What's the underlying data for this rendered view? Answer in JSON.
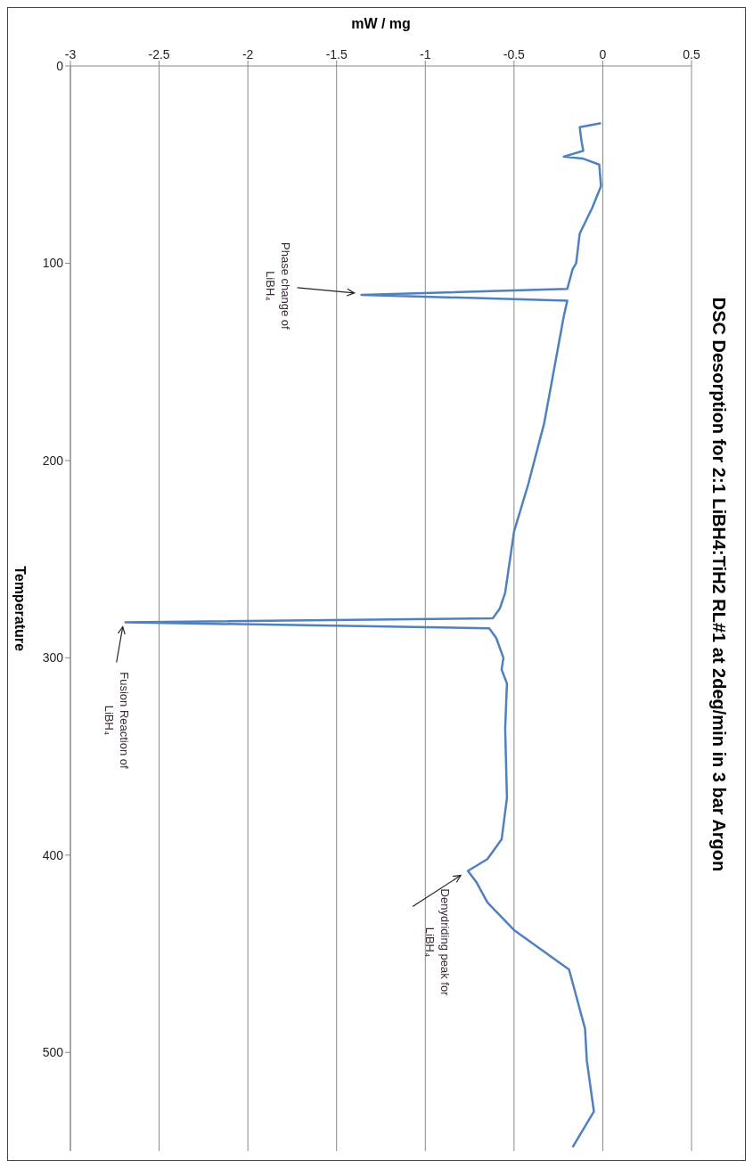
{
  "chart_data": {
    "type": "line",
    "title": "DSC Desorption for 2:1 LiBH4:TiH2 RL#1 at 2deg/min in 3 bar Argon",
    "xlabel": "mW / mg",
    "ylabel": "Temperature",
    "x": [
      -0.01,
      -0.13,
      -0.12,
      -0.11,
      -0.22,
      -0.11,
      -0.02,
      -0.01,
      -0.06,
      -0.13,
      -0.15,
      -0.17,
      -0.2,
      -1.36,
      -0.2,
      -0.22,
      -0.33,
      -0.42,
      -0.5,
      -0.55,
      -0.58,
      -0.62,
      -2.69,
      -0.64,
      -0.6,
      -0.56,
      -0.57,
      -0.54,
      -0.55,
      -0.54,
      -0.57,
      -0.65,
      -0.76,
      -0.71,
      -0.65,
      -0.5,
      -0.19,
      -0.1,
      -0.09,
      -0.05,
      -0.17
    ],
    "values": [
      29,
      31,
      38,
      43,
      46,
      47,
      50,
      61,
      72,
      85,
      100,
      103,
      113,
      116,
      119,
      127,
      181,
      212,
      236,
      267,
      275,
      280,
      282,
      285,
      290,
      300,
      306,
      313,
      336,
      371,
      392,
      402,
      408,
      414,
      424,
      438,
      458,
      488,
      504,
      530,
      548
    ],
    "color": "#4f81bd",
    "xlim": [
      -3,
      0.5
    ],
    "xticks": [
      -3,
      -2.5,
      -2,
      -1.5,
      -1,
      -0.5,
      0,
      0.5
    ],
    "ylim": [
      550,
      0
    ],
    "yticks": [
      0,
      100,
      200,
      300,
      400,
      500
    ],
    "grid": "x",
    "annotations": [
      {
        "text": "Phase change of LiBH₄",
        "x": -1.36,
        "y": 116
      },
      {
        "text": "Fusion Reaction of LiBH₄",
        "x": -2.69,
        "y": 282
      },
      {
        "text": "Denydriding peak for LiBH₄",
        "x": -0.76,
        "y": 408
      }
    ]
  }
}
